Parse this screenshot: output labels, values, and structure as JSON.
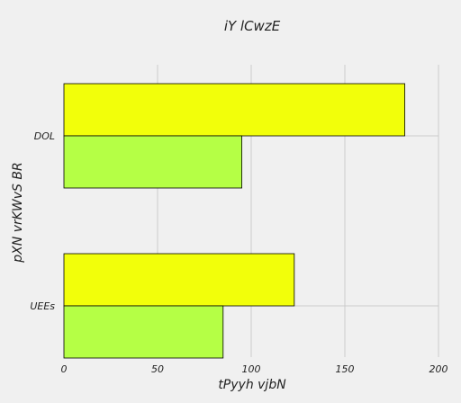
{
  "chart_data": {
    "type": "bar",
    "orientation": "horizontal",
    "title": "iY lCwzE",
    "xlabel": "tPyyh vjbN",
    "ylabel": "pXN vrKWvS BR",
    "categories": [
      "DOL",
      "UEEs"
    ],
    "series": [
      {
        "values": [
          182,
          123
        ],
        "color": "#f2ff0a"
      },
      {
        "values": [
          95,
          85
        ],
        "color": "#b5ff45"
      }
    ],
    "xlim": [
      0,
      200
    ],
    "xticks": [
      0,
      50,
      100,
      150,
      200
    ],
    "xtick_labels": [
      "0",
      "50",
      "100",
      "150",
      "200"
    ],
    "grid": true,
    "background": "#f0f0f0",
    "grid_color": "#cbcbcb"
  }
}
